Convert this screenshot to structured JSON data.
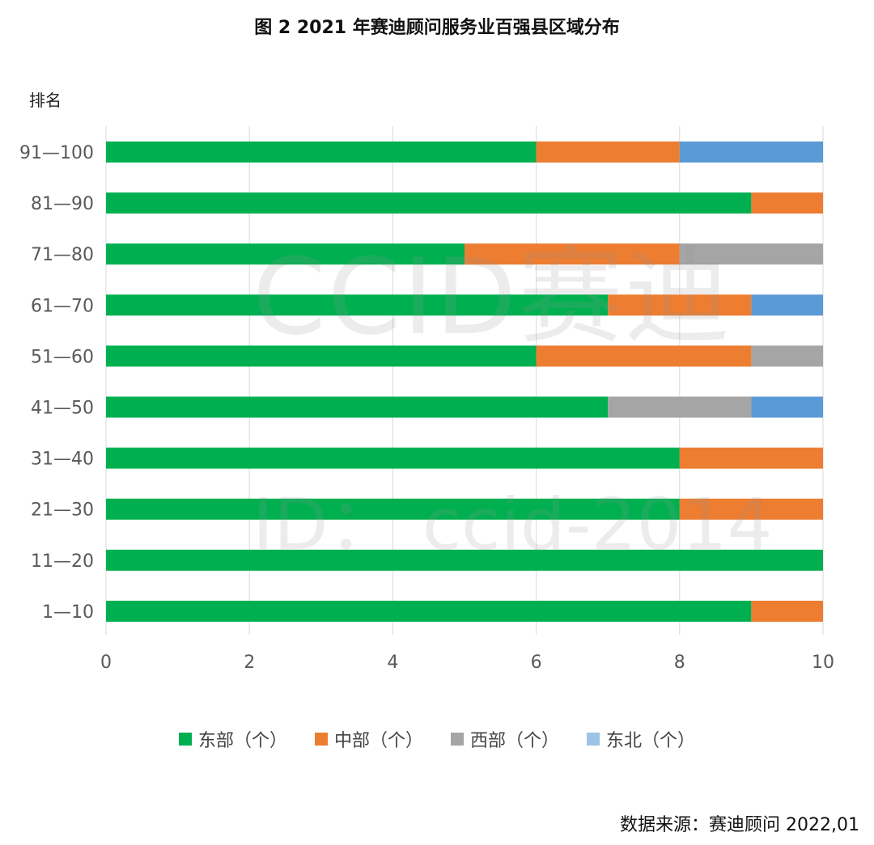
{
  "chart_data": {
    "type": "bar",
    "orientation": "horizontal",
    "stacked": true,
    "title": "图 2 2021 年赛迪顾问服务业百强县区域分布",
    "ylabel": "排名",
    "xlabel": "",
    "xlim": [
      0,
      10
    ],
    "xticks": [
      0,
      2,
      4,
      6,
      8,
      10
    ],
    "grid": true,
    "legend_position": "bottom",
    "categories": [
      "91—100",
      "81—90",
      "71—80",
      "61—70",
      "51—60",
      "41—50",
      "31—40",
      "21—30",
      "11—20",
      "1—10"
    ],
    "series": [
      {
        "name": "东部（个）",
        "color": "#00b050",
        "values": [
          6,
          9,
          5,
          7,
          6,
          7,
          8,
          8,
          10,
          9
        ]
      },
      {
        "name": "中部（个）",
        "color": "#ed7d31",
        "values": [
          2,
          1,
          3,
          2,
          3,
          0,
          2,
          2,
          0,
          1
        ]
      },
      {
        "name": "西部（个）",
        "color": "#a5a5a5",
        "values": [
          0,
          0,
          2,
          0,
          1,
          2,
          0,
          0,
          0,
          0
        ]
      },
      {
        "name": "东北（个）",
        "color": "#5b9bd5",
        "values": [
          2,
          0,
          0,
          1,
          0,
          1,
          0,
          0,
          0,
          0
        ]
      }
    ],
    "legend_swatch_colors": [
      "#00b050",
      "#ed7d31",
      "#a5a5a5",
      "#9dc3e6"
    ]
  },
  "source_note": "数据来源：赛迪顾问  2022,01",
  "watermark": {
    "main": "CCID赛迪",
    "id": "ID： ccid-2014"
  }
}
